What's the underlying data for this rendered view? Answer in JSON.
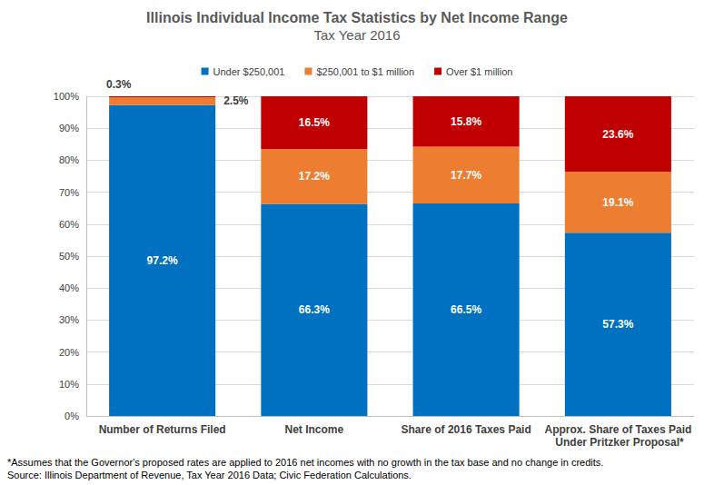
{
  "chart_data": {
    "type": "bar",
    "title": "Illinois Individual Income Tax Statistics by Net Income Range",
    "subtitle": "Tax Year 2016",
    "categories": [
      "Number of Returns Filed",
      "Net Income",
      "Share of 2016 Taxes Paid",
      "Approx. Share of Taxes Paid Under Pritzker Proposal*"
    ],
    "series": [
      {
        "name": "Under $250,001",
        "color": "#0070C0",
        "values": [
          97.2,
          66.3,
          66.5,
          57.3
        ],
        "value_labels": [
          "97.2%",
          "66.3%",
          "66.5%",
          "57.3%"
        ]
      },
      {
        "name": "$250,001 to $1 million",
        "color": "#ED7D31",
        "values": [
          2.5,
          17.2,
          17.7,
          19.1
        ],
        "value_labels": [
          "2.5%",
          "17.2%",
          "17.7%",
          "19.1%"
        ]
      },
      {
        "name": "Over $1 million",
        "color": "#C00000",
        "values": [
          0.3,
          16.5,
          15.8,
          23.6
        ],
        "value_labels": [
          "0.3%",
          "16.5%",
          "15.8%",
          "23.6%"
        ]
      }
    ],
    "ylim": [
      0,
      100
    ],
    "yticks": [
      {
        "value": 0,
        "label": "0%"
      },
      {
        "value": 10,
        "label": "10%"
      },
      {
        "value": 20,
        "label": "20%"
      },
      {
        "value": 30,
        "label": "30%"
      },
      {
        "value": 40,
        "label": "40%"
      },
      {
        "value": 50,
        "label": "50%"
      },
      {
        "value": 60,
        "label": "60%"
      },
      {
        "value": 70,
        "label": "70%"
      },
      {
        "value": 80,
        "label": "80%"
      },
      {
        "value": 90,
        "label": "90%"
      },
      {
        "value": 100,
        "label": "100%"
      }
    ],
    "stacked": true,
    "data_labels": true,
    "grid": true,
    "legend": "top",
    "annotations": [
      "*Assumes that the Governor's proposed rates are applied to 2016 net incomes with no growth in the tax base and no change in credits.",
      "Source: Illinois Department of Revenue, Tax Year 2016 Data; Civic Federation Calculations."
    ]
  }
}
